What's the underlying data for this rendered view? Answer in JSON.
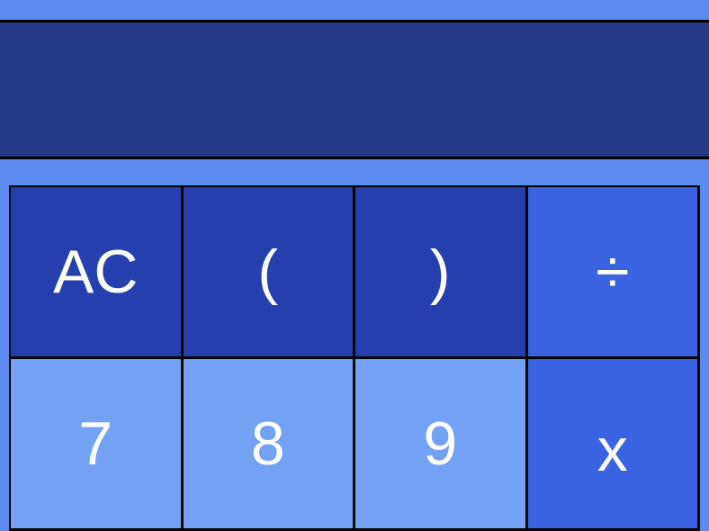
{
  "display": {
    "value": ""
  },
  "keys": [
    {
      "label": "AC",
      "kind": "fn"
    },
    {
      "label": "(",
      "kind": "fn"
    },
    {
      "label": ")",
      "kind": "fn"
    },
    {
      "label": "÷",
      "kind": "op"
    },
    {
      "label": "7",
      "kind": "num"
    },
    {
      "label": "8",
      "kind": "num"
    },
    {
      "label": "9",
      "kind": "num"
    },
    {
      "label": "x",
      "kind": "op"
    }
  ],
  "colors": {
    "background": "#5b8bee",
    "display": "#263b87",
    "function_key": "#2540ae",
    "operator_key": "#3a63e2",
    "number_key": "#73a2f4"
  }
}
